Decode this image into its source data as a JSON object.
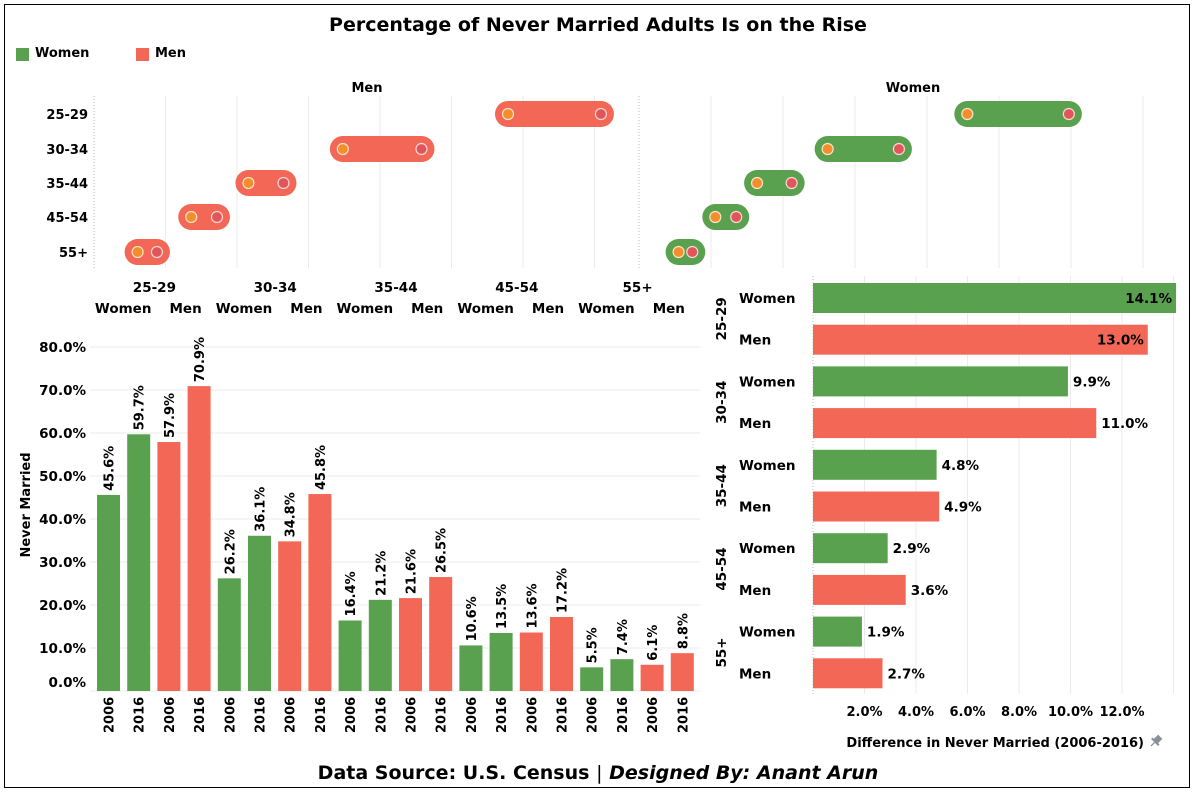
{
  "title": "Percentage of Never Married Adults Is on the Rise",
  "legend": [
    {
      "label": "Women",
      "color": "#59A14F"
    },
    {
      "label": "Men",
      "color": "#F26755"
    }
  ],
  "colors": {
    "women": "#59A14F",
    "men": "#F26755",
    "dot_2006": "#F28E2B",
    "dot_2016": "#E15759",
    "grid": "#EBEBEB"
  },
  "footer": {
    "source": "Data Source: U.S. Census",
    "separator": "|",
    "designer": "Designed By: Anant Arun"
  },
  "chart_data": [
    {
      "type": "dumbbell",
      "name": "range-dumbbell",
      "panels": [
        "Men",
        "Women"
      ],
      "categories": [
        "25-29",
        "30-34",
        "35-44",
        "45-54",
        "55+"
      ],
      "series": [
        {
          "name": "Men",
          "values_2006": [
            57.9,
            34.8,
            21.6,
            13.6,
            6.1
          ],
          "values_2016": [
            70.9,
            45.8,
            26.5,
            17.2,
            8.8
          ]
        },
        {
          "name": "Women",
          "values_2006": [
            45.6,
            26.2,
            16.4,
            10.6,
            5.5
          ],
          "values_2016": [
            59.7,
            36.1,
            21.2,
            13.5,
            7.4
          ]
        }
      ],
      "xlim": [
        0,
        75
      ],
      "grid": true
    },
    {
      "type": "bar",
      "name": "never-married-by-year",
      "ylabel": "Never Married",
      "yticks": [
        "0.0%",
        "10.0%",
        "20.0%",
        "30.0%",
        "40.0%",
        "50.0%",
        "60.0%",
        "70.0%",
        "80.0%"
      ],
      "ylim": [
        0,
        80
      ],
      "groups": [
        {
          "label": "25-29",
          "sub": [
            "Women",
            "Men"
          ]
        },
        {
          "label": "30-34",
          "sub": [
            "Women",
            "Men"
          ]
        },
        {
          "label": "35-44",
          "sub": [
            "Women",
            "Men"
          ]
        },
        {
          "label": "45-54",
          "sub": [
            "Women",
            "Men"
          ]
        },
        {
          "label": "55+",
          "sub": [
            "Women",
            "Men"
          ]
        }
      ],
      "bars": [
        {
          "group": "25-29",
          "sex": "Women",
          "year": "2006",
          "value": 45.6,
          "label": "45.6%"
        },
        {
          "group": "25-29",
          "sex": "Women",
          "year": "2016",
          "value": 59.7,
          "label": "59.7%"
        },
        {
          "group": "25-29",
          "sex": "Men",
          "year": "2006",
          "value": 57.9,
          "label": "57.9%"
        },
        {
          "group": "25-29",
          "sex": "Men",
          "year": "2016",
          "value": 70.9,
          "label": "70.9%"
        },
        {
          "group": "30-34",
          "sex": "Women",
          "year": "2006",
          "value": 26.2,
          "label": "26.2%"
        },
        {
          "group": "30-34",
          "sex": "Women",
          "year": "2016",
          "value": 36.1,
          "label": "36.1%"
        },
        {
          "group": "30-34",
          "sex": "Men",
          "year": "2006",
          "value": 34.8,
          "label": "34.8%"
        },
        {
          "group": "30-34",
          "sex": "Men",
          "year": "2016",
          "value": 45.8,
          "label": "45.8%"
        },
        {
          "group": "35-44",
          "sex": "Women",
          "year": "2006",
          "value": 16.4,
          "label": "16.4%"
        },
        {
          "group": "35-44",
          "sex": "Women",
          "year": "2016",
          "value": 21.2,
          "label": "21.2%"
        },
        {
          "group": "35-44",
          "sex": "Men",
          "year": "2006",
          "value": 21.6,
          "label": "21.6%"
        },
        {
          "group": "35-44",
          "sex": "Men",
          "year": "2016",
          "value": 26.5,
          "label": "26.5%"
        },
        {
          "group": "45-54",
          "sex": "Women",
          "year": "2006",
          "value": 10.6,
          "label": "10.6%"
        },
        {
          "group": "45-54",
          "sex": "Women",
          "year": "2016",
          "value": 13.5,
          "label": "13.5%"
        },
        {
          "group": "45-54",
          "sex": "Men",
          "year": "2006",
          "value": 13.6,
          "label": "13.6%"
        },
        {
          "group": "45-54",
          "sex": "Men",
          "year": "2016",
          "value": 17.2,
          "label": "17.2%"
        },
        {
          "group": "55+",
          "sex": "Women",
          "year": "2006",
          "value": 5.5,
          "label": "5.5%"
        },
        {
          "group": "55+",
          "sex": "Women",
          "year": "2016",
          "value": 7.4,
          "label": "7.4%"
        },
        {
          "group": "55+",
          "sex": "Men",
          "year": "2006",
          "value": 6.1,
          "label": "6.1%"
        },
        {
          "group": "55+",
          "sex": "Men",
          "year": "2016",
          "value": 8.8,
          "label": "8.8%"
        }
      ]
    },
    {
      "type": "bar",
      "orientation": "horizontal",
      "name": "difference-2006-2016",
      "xlabel": "Difference in Never Married (2006-2016)",
      "xticks": [
        "2.0%",
        "4.0%",
        "6.0%",
        "8.0%",
        "10.0%",
        "12.0%"
      ],
      "xlim": [
        0,
        14.1
      ],
      "rows": [
        {
          "group": "25-29",
          "sex": "Women",
          "value": 14.1,
          "label": "14.1%"
        },
        {
          "group": "25-29",
          "sex": "Men",
          "value": 13.0,
          "label": "13.0%"
        },
        {
          "group": "30-34",
          "sex": "Women",
          "value": 9.9,
          "label": "9.9%"
        },
        {
          "group": "30-34",
          "sex": "Men",
          "value": 11.0,
          "label": "11.0%"
        },
        {
          "group": "35-44",
          "sex": "Women",
          "value": 4.8,
          "label": "4.8%"
        },
        {
          "group": "35-44",
          "sex": "Men",
          "value": 4.9,
          "label": "4.9%"
        },
        {
          "group": "45-54",
          "sex": "Women",
          "value": 2.9,
          "label": "2.9%"
        },
        {
          "group": "45-54",
          "sex": "Men",
          "value": 3.6,
          "label": "3.6%"
        },
        {
          "group": "55+",
          "sex": "Women",
          "value": 1.9,
          "label": "1.9%"
        },
        {
          "group": "55+",
          "sex": "Men",
          "value": 2.7,
          "label": "2.7%"
        }
      ]
    }
  ]
}
